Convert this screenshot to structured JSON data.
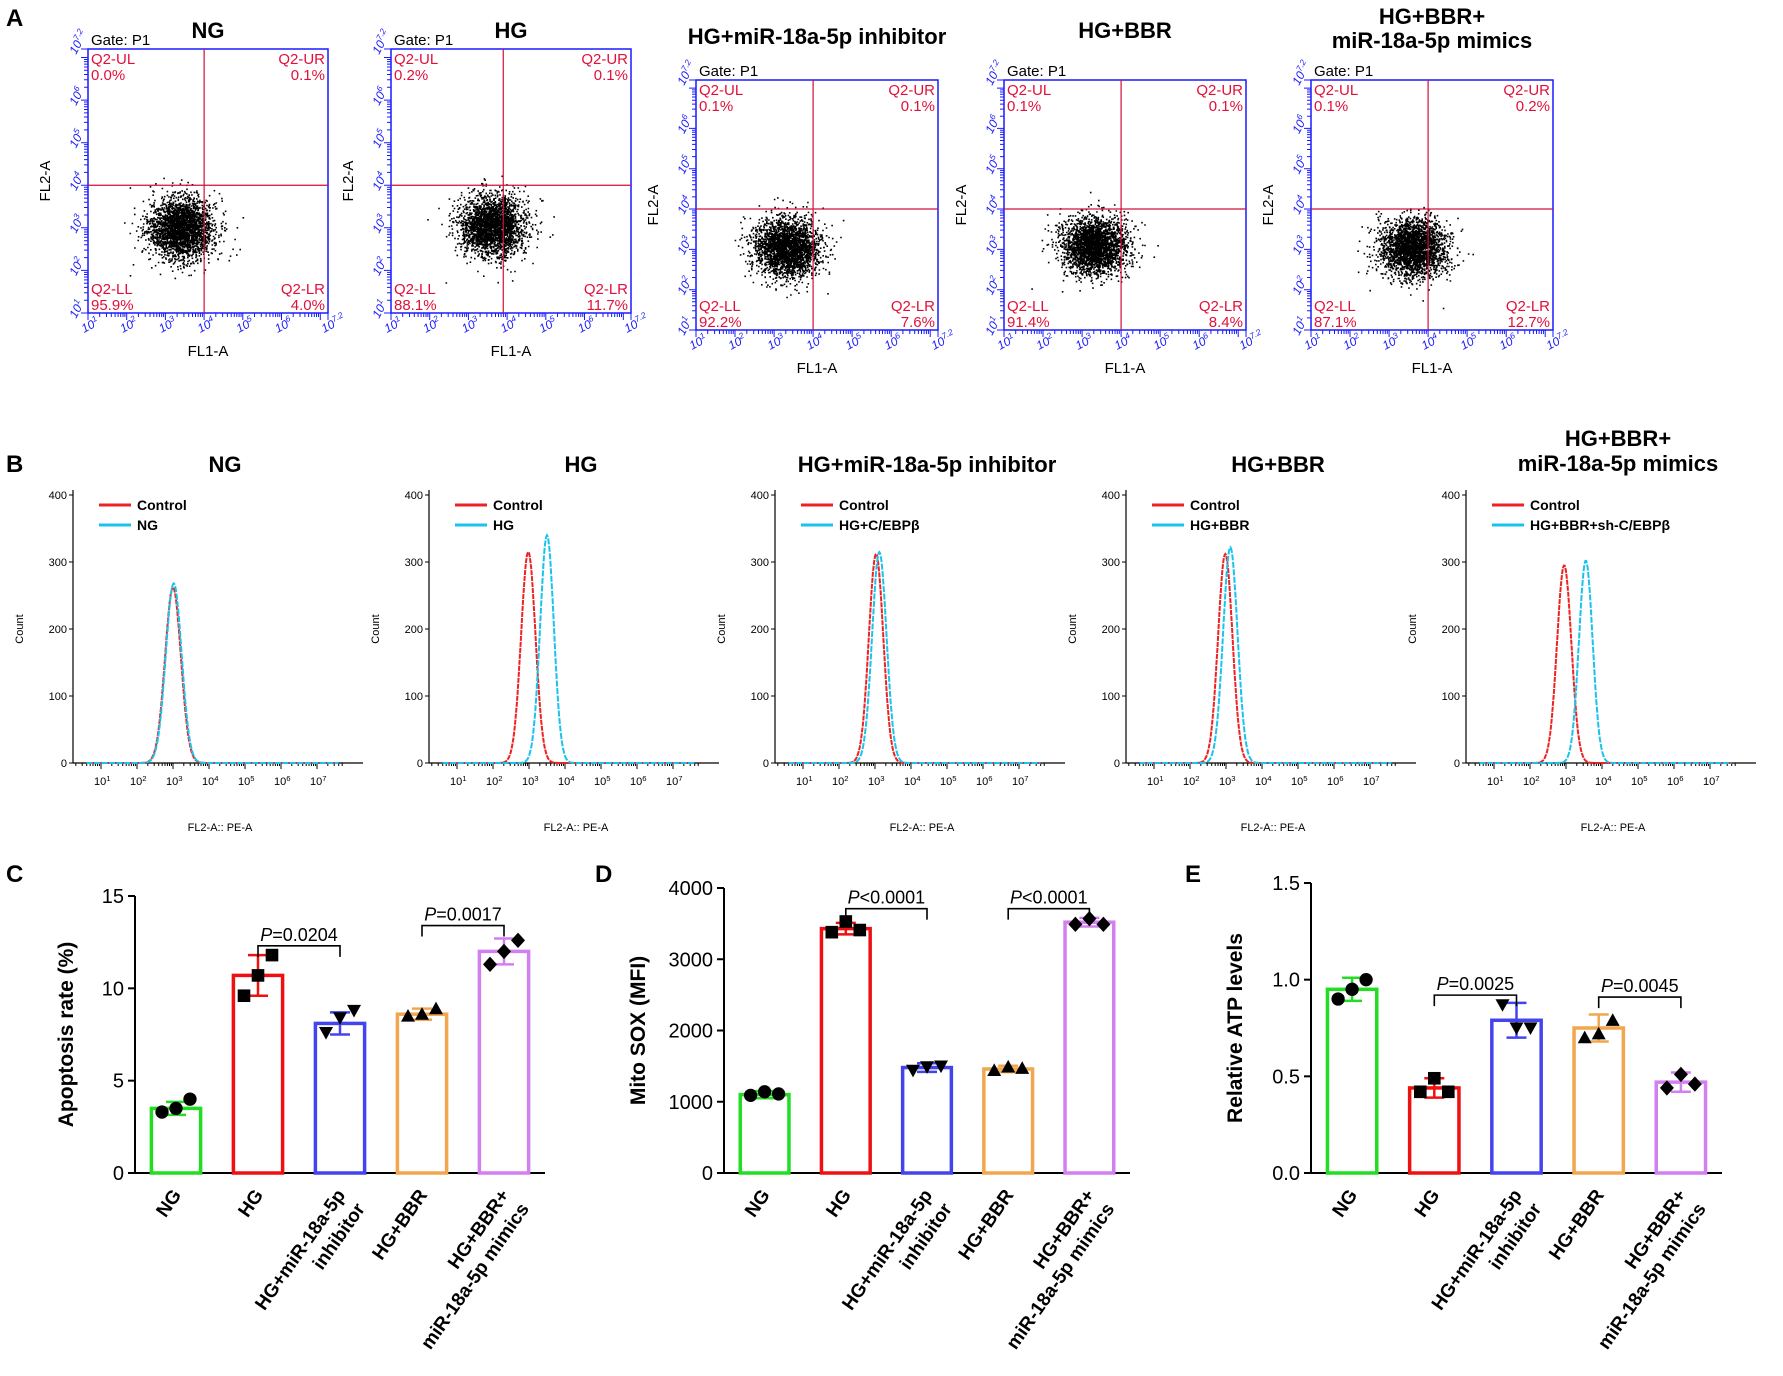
{
  "panels": {
    "A": "A",
    "B": "B",
    "C": "C",
    "D": "D",
    "E": "E"
  },
  "colors": {
    "NG": "#22dd22",
    "HG": "#ee1111",
    "inhibitor": "#4444ee",
    "BBR": "#f2a64e",
    "mimics": "#d27ff0",
    "quadrant_axis": "#1a1aff",
    "quadrant_text": "#e0103a",
    "quadrant_line": "#d0103a",
    "control_line": "#ee2222",
    "sample_line": "#19c3ee"
  },
  "chart_data": [
    {
      "panel": "A",
      "type": "scatter",
      "gate_label": "Gate: P1",
      "xlabel": "FL1-A",
      "ylabel": "FL2-A",
      "x_ticks": [
        "10^1",
        "10^2",
        "10^3",
        "10^4",
        "10^5",
        "10^6",
        "10^7.2"
      ],
      "y_ticks": [
        "10^1",
        "10^2",
        "10^3",
        "10^4",
        "10^5",
        "10^6",
        "10^7.2"
      ],
      "xlim_log": [
        1,
        7.2
      ],
      "ylim_log": [
        1,
        7.2
      ],
      "plots": [
        {
          "title": [
            "NG"
          ],
          "quadrant_split_log": [
            4.0,
            4.0
          ],
          "cluster_center_log": [
            3.4,
            3.0
          ],
          "quadrants": {
            "UL": [
              "Q2-UL",
              "0.0%"
            ],
            "UR": [
              "Q2-UR",
              "0.1%"
            ],
            "LL": [
              "Q2-LL",
              "95.9%"
            ],
            "LR": [
              "Q2-LR",
              "4.0%"
            ]
          }
        },
        {
          "title": [
            "HG"
          ],
          "quadrant_split_log": [
            3.9,
            4.0
          ],
          "cluster_center_log": [
            3.6,
            3.05
          ],
          "quadrants": {
            "UL": [
              "Q2-UL",
              "0.2%"
            ],
            "UR": [
              "Q2-UR",
              "0.1%"
            ],
            "LL": [
              "Q2-LL",
              "88.1%"
            ],
            "LR": [
              "Q2-LR",
              "11.7%"
            ]
          }
        },
        {
          "title": [
            "HG+miR-18a-5p inhibitor"
          ],
          "quadrant_split_log": [
            4.0,
            4.0
          ],
          "cluster_center_log": [
            3.3,
            3.05
          ],
          "quadrants": {
            "UL": [
              "Q2-UL",
              "0.1%"
            ],
            "UR": [
              "Q2-UR",
              "0.1%"
            ],
            "LL": [
              "Q2-LL",
              "92.2%"
            ],
            "LR": [
              "Q2-LR",
              "7.6%"
            ]
          }
        },
        {
          "title": [
            "HG+BBR"
          ],
          "quadrant_split_log": [
            4.0,
            4.0
          ],
          "cluster_center_log": [
            3.3,
            3.1
          ],
          "quadrants": {
            "UL": [
              "Q2-UL",
              "0.1%"
            ],
            "UR": [
              "Q2-UR",
              "0.1%"
            ],
            "LL": [
              "Q2-LL",
              "91.4%"
            ],
            "LR": [
              "Q2-LR",
              "8.4%"
            ]
          }
        },
        {
          "title": [
            "HG+BBR+",
            "miR-18a-5p mimics"
          ],
          "quadrant_split_log": [
            4.0,
            4.0
          ],
          "cluster_center_log": [
            3.6,
            3.05
          ],
          "quadrants": {
            "UL": [
              "Q2-UL",
              "0.1%"
            ],
            "UR": [
              "Q2-UR",
              "0.2%"
            ],
            "LL": [
              "Q2-LL",
              "87.1%"
            ],
            "LR": [
              "Q2-LR",
              "12.7%"
            ]
          }
        }
      ]
    },
    {
      "panel": "B",
      "type": "line",
      "xlabel": "FL2-A:: PE-A",
      "ylabel": "Count",
      "y_ticks": [
        0,
        100,
        200,
        300,
        400
      ],
      "ylim": [
        0,
        400
      ],
      "x_ticks": [
        "10^1",
        "10^2",
        "10^3",
        "10^4",
        "10^5",
        "10^6",
        "10^7"
      ],
      "plots": [
        {
          "title": [
            "NG"
          ],
          "series": [
            {
              "name": "Control",
              "peak_log": 3.0,
              "peak_count": 262,
              "width": 0.22
            },
            {
              "name": "NG",
              "peak_log": 3.02,
              "peak_count": 268,
              "width": 0.22
            }
          ]
        },
        {
          "title": [
            "HG"
          ],
          "series": [
            {
              "name": "Control",
              "peak_log": 2.98,
              "peak_count": 315,
              "width": 0.2
            },
            {
              "name": "HG",
              "peak_log": 3.5,
              "peak_count": 340,
              "width": 0.19
            }
          ]
        },
        {
          "title": [
            "HG+miR-18a-5p inhibitor"
          ],
          "series": [
            {
              "name": "Control",
              "peak_log": 3.03,
              "peak_count": 312,
              "width": 0.2
            },
            {
              "name": "HG+C/EBPβ",
              "peak_log": 3.12,
              "peak_count": 315,
              "width": 0.2
            }
          ]
        },
        {
          "title": [
            "HG+BBR"
          ],
          "series": [
            {
              "name": "Control",
              "peak_log": 2.98,
              "peak_count": 312,
              "width": 0.2
            },
            {
              "name": "HG+BBR",
              "peak_log": 3.12,
              "peak_count": 322,
              "width": 0.2
            }
          ]
        },
        {
          "title": [
            "HG+BBR+",
            "miR-18a-5p mimics"
          ],
          "series": [
            {
              "name": "Control",
              "peak_log": 2.95,
              "peak_count": 295,
              "width": 0.2
            },
            {
              "name": "HG+BBR+sh-C/EBPβ",
              "peak_log": 3.55,
              "peak_count": 302,
              "width": 0.19
            }
          ]
        }
      ]
    },
    {
      "panel": "C",
      "type": "bar",
      "ylabel": "Apoptosis rate (%)",
      "ylim": [
        0,
        15
      ],
      "y_ticks": [
        0,
        5,
        10,
        15
      ],
      "categories": [
        "NG",
        "HG",
        "HG+miR-18a-5p\ninhibitor",
        "HG+BBR",
        "HG+BBR+\nmiR-18a-5p mimics"
      ],
      "values": [
        3.5,
        10.7,
        8.1,
        8.6,
        12.0
      ],
      "errors": [
        0.35,
        1.1,
        0.6,
        0.3,
        0.7
      ],
      "points": [
        [
          3.3,
          3.5,
          4.0
        ],
        [
          9.6,
          10.7,
          11.8
        ],
        [
          7.6,
          8.4,
          8.8
        ],
        [
          8.5,
          8.6,
          8.9
        ],
        [
          11.3,
          12.0,
          12.6
        ]
      ],
      "markers": [
        "circle",
        "square",
        "triangle-down",
        "triangle-up",
        "diamond"
      ],
      "comparisons": [
        {
          "from": 1,
          "to": 2,
          "label": "P=0.0204",
          "y": 12.3
        },
        {
          "from": 3,
          "to": 4,
          "label": "P=0.0017",
          "y": 13.4
        }
      ]
    },
    {
      "panel": "D",
      "type": "bar",
      "ylabel": "Mito SOX (MFI)",
      "ylim": [
        0,
        4000
      ],
      "y_ticks": [
        0,
        1000,
        2000,
        3000,
        4000
      ],
      "categories": [
        "NG",
        "HG",
        "HG+miR-18a-5p\ninhibitor",
        "HG+BBR",
        "HG+BBR+\nmiR-18a-5p mimics"
      ],
      "values": [
        1100,
        3430,
        1480,
        1460,
        3520
      ],
      "errors": [
        50,
        80,
        60,
        45,
        60
      ],
      "points": [
        [
          1090,
          1140,
          1110
        ],
        [
          3380,
          3530,
          3410
        ],
        [
          1440,
          1490,
          1500
        ],
        [
          1440,
          1490,
          1470
        ],
        [
          3490,
          3570,
          3490
        ]
      ],
      "markers": [
        "circle",
        "square",
        "triangle-down",
        "triangle-up",
        "diamond"
      ],
      "comparisons": [
        {
          "from": 1,
          "to": 2,
          "label": "P<0.0001",
          "y": 3710
        },
        {
          "from": 3,
          "to": 4,
          "label": "P<0.0001",
          "y": 3710
        }
      ]
    },
    {
      "panel": "E",
      "type": "bar",
      "ylabel": "Relative ATP levels",
      "ylim": [
        0,
        1.5
      ],
      "y_ticks": [
        "0.0",
        "0.5",
        "1.0",
        "1.5"
      ],
      "categories": [
        "NG",
        "HG",
        "HG+miR-18a-5p\ninhibitor",
        "HG+BBR",
        "HG+BBR+\nmiR-18a-5p mimics"
      ],
      "values": [
        0.95,
        0.44,
        0.79,
        0.75,
        0.47
      ],
      "errors": [
        0.06,
        0.05,
        0.09,
        0.07,
        0.05
      ],
      "points": [
        [
          0.9,
          0.95,
          1.0
        ],
        [
          0.42,
          0.49,
          0.42
        ],
        [
          0.87,
          0.75,
          0.75
        ],
        [
          0.7,
          0.72,
          0.79
        ],
        [
          0.44,
          0.51,
          0.46
        ]
      ],
      "markers": [
        "circle",
        "square",
        "triangle-down",
        "triangle-up",
        "diamond"
      ],
      "comparisons": [
        {
          "from": 1,
          "to": 2,
          "label": "P=0.0025",
          "y": 0.92
        },
        {
          "from": 3,
          "to": 4,
          "label": "P=0.0045",
          "y": 0.91
        }
      ]
    }
  ]
}
